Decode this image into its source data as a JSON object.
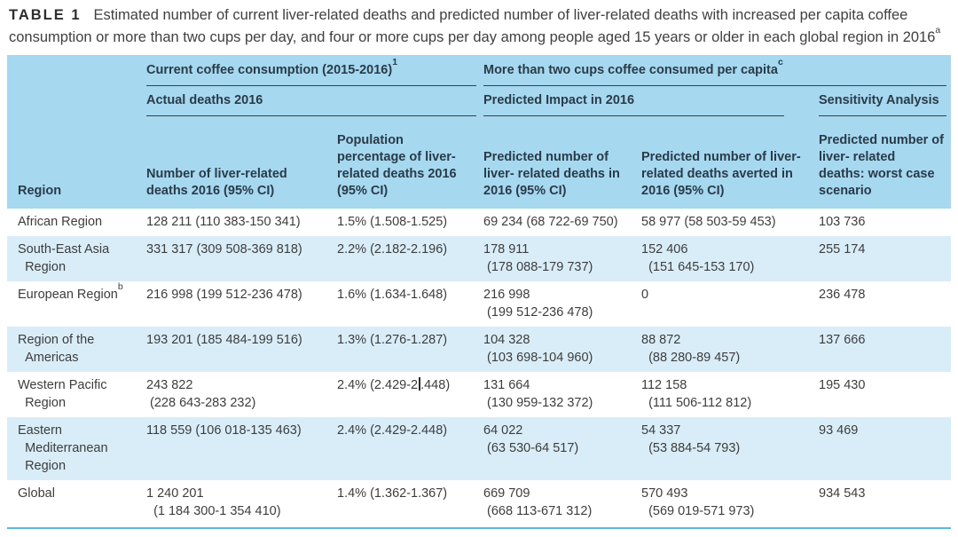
{
  "caption": {
    "label": "TABLE 1",
    "text": "Estimated number of current liver-related deaths and predicted number of liver-related deaths with increased per capita coffee consumption or more than two cups per day, and four or more cups per day among people aged 15 years or older in each global region in 2016",
    "footnote_marker": "a"
  },
  "table": {
    "group1": {
      "text": "Current coffee consumption (2015-2016)",
      "footnote_marker": "1"
    },
    "group2": {
      "text": "More than two cups coffee consumed per capita",
      "footnote_marker": "c"
    },
    "sub1": "Actual deaths 2016",
    "sub2": "Predicted Impact in 2016",
    "sub3": "Sensitivity Analysis",
    "columns": [
      "Region",
      "Number of liver-related deaths 2016 (95% CI)",
      "Population percentage of liver-related deaths 2016 (95% CI)",
      "Predicted number of liver- related deaths in 2016 (95% CI)",
      "Predicted number of liver-related deaths averted in 2016 (95% CI)",
      "Predicted number of liver- related deaths: worst case scenario"
    ],
    "rows": [
      {
        "region": "African Region",
        "cells": [
          "128 211 (110 383-150 341)",
          "1.5% (1.508-1.525)",
          "69 234 (68 722-69 750)",
          "58 977 (58 503-59 453)",
          "103 736"
        ]
      },
      {
        "region": "South-East Asia\n  Region",
        "cells": [
          "331 317 (309 508-369 818)",
          "2.2% (2.182-2.196)",
          "178 911\n (178 088-179 737)",
          "152 406\n  (151 645-153 170)",
          "255 174"
        ]
      },
      {
        "region": "European Region",
        "region_footnote_marker": "b",
        "cells": [
          "216 998 (199 512-236 478)",
          "1.6% (1.634-1.648)",
          "216 998\n (199 512-236 478)",
          "0",
          "236 478"
        ]
      },
      {
        "region": "Region of the\n  Americas",
        "cells": [
          "193 201 (185 484-199 516)",
          "1.3% (1.276-1.287)",
          "104 328\n (103 698-104 960)",
          "88 872\n  (88 280-89 457)",
          "137 666"
        ]
      },
      {
        "region": "Western Pacific\n  Region",
        "cells": [
          "243 822\n (228 643-283 232)",
          {
            "text_before_caret": "2.4% (2.429-2",
            "text_after_caret": ".448)"
          },
          "131 664\n (130 959-132 372)",
          "112 158\n  (111 506-112 812)",
          "195 430"
        ]
      },
      {
        "region": "Eastern\n  Mediterranean\n  Region",
        "cells": [
          "118 559 (106 018-135 463)",
          "2.4% (2.429-2.448)",
          "64 022\n (63 530-64 517)",
          "54 337\n  (53 884-54 793)",
          "93 469"
        ]
      },
      {
        "region": "Global",
        "cells": [
          "1 240 201\n  (1 184 300-1 354 410)",
          "1.4% (1.362-1.367)",
          "669 709\n (668 113-671 312)",
          "570 493\n  (569 019-571 973)",
          "934 543"
        ]
      }
    ]
  },
  "colors": {
    "header_bg": "#a6d8f0",
    "stripe_bg": "#d9edf8",
    "bottom_rule": "#5cb7e2",
    "header_underline": "#3f3f3f",
    "body_text": "#3d3d3d",
    "header_text": "#2a3b48",
    "caption_text": "#404040"
  }
}
